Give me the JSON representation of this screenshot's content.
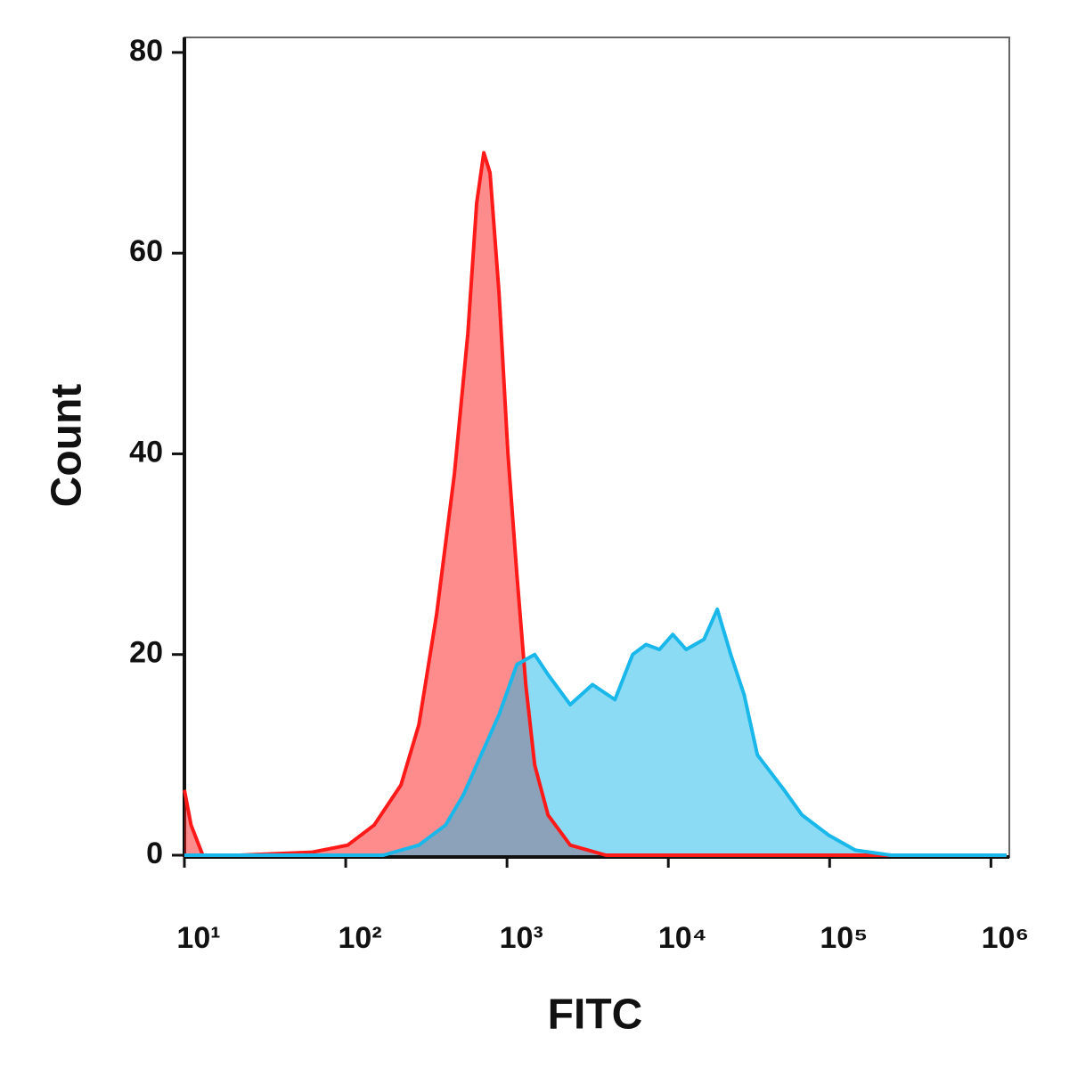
{
  "chart_data": {
    "type": "area",
    "x_label": "FITC",
    "y_label": "Count",
    "xlim": [
      10,
      1300000
    ],
    "ylim": [
      0,
      81.5
    ],
    "x_scale": "log",
    "xticks": [
      {
        "value": 10,
        "label": "10¹"
      },
      {
        "value": 100,
        "label": "10²"
      },
      {
        "value": 1000,
        "label": "10³"
      },
      {
        "value": 10000,
        "label": "10⁴"
      },
      {
        "value": 100000,
        "label": "10⁵"
      },
      {
        "value": 1000000,
        "label": "10⁶"
      }
    ],
    "yticks": [
      0,
      20,
      40,
      60,
      80
    ],
    "series": [
      {
        "color": "#ff1a1a",
        "x": [
          10,
          11,
          13,
          22,
          62,
          103,
          150,
          220,
          284,
          366,
          472,
          572,
          649,
          718,
          785,
          892,
          1013,
          1151,
          1307,
          1484,
          1795,
          2466,
          4103,
          1250000
        ],
        "values": [
          6.5,
          3,
          0,
          0,
          0.3,
          1,
          3,
          7,
          13,
          24,
          38,
          52,
          65,
          70,
          68,
          56,
          40,
          28,
          17,
          9,
          4,
          1,
          0,
          0
        ]
      },
      {
        "color": "#1ab8ea",
        "x": [
          10,
          171,
          284,
          416,
          536,
          691,
          892,
          1151,
          1484,
          1795,
          2466,
          3388,
          4667,
          6012,
          7278,
          8810,
          10660,
          12890,
          16630,
          20130,
          24370,
          29500,
          35650,
          52240,
          67450,
          98650,
          144500,
          240400,
          1250000
        ],
        "values": [
          0,
          0,
          1,
          3,
          6,
          10,
          14,
          19,
          20,
          18,
          15,
          17,
          15.5,
          20,
          21,
          20.5,
          22,
          20.5,
          21.5,
          24.5,
          20,
          16,
          10,
          6.5,
          4,
          2,
          0.5,
          0,
          0
        ]
      }
    ]
  }
}
